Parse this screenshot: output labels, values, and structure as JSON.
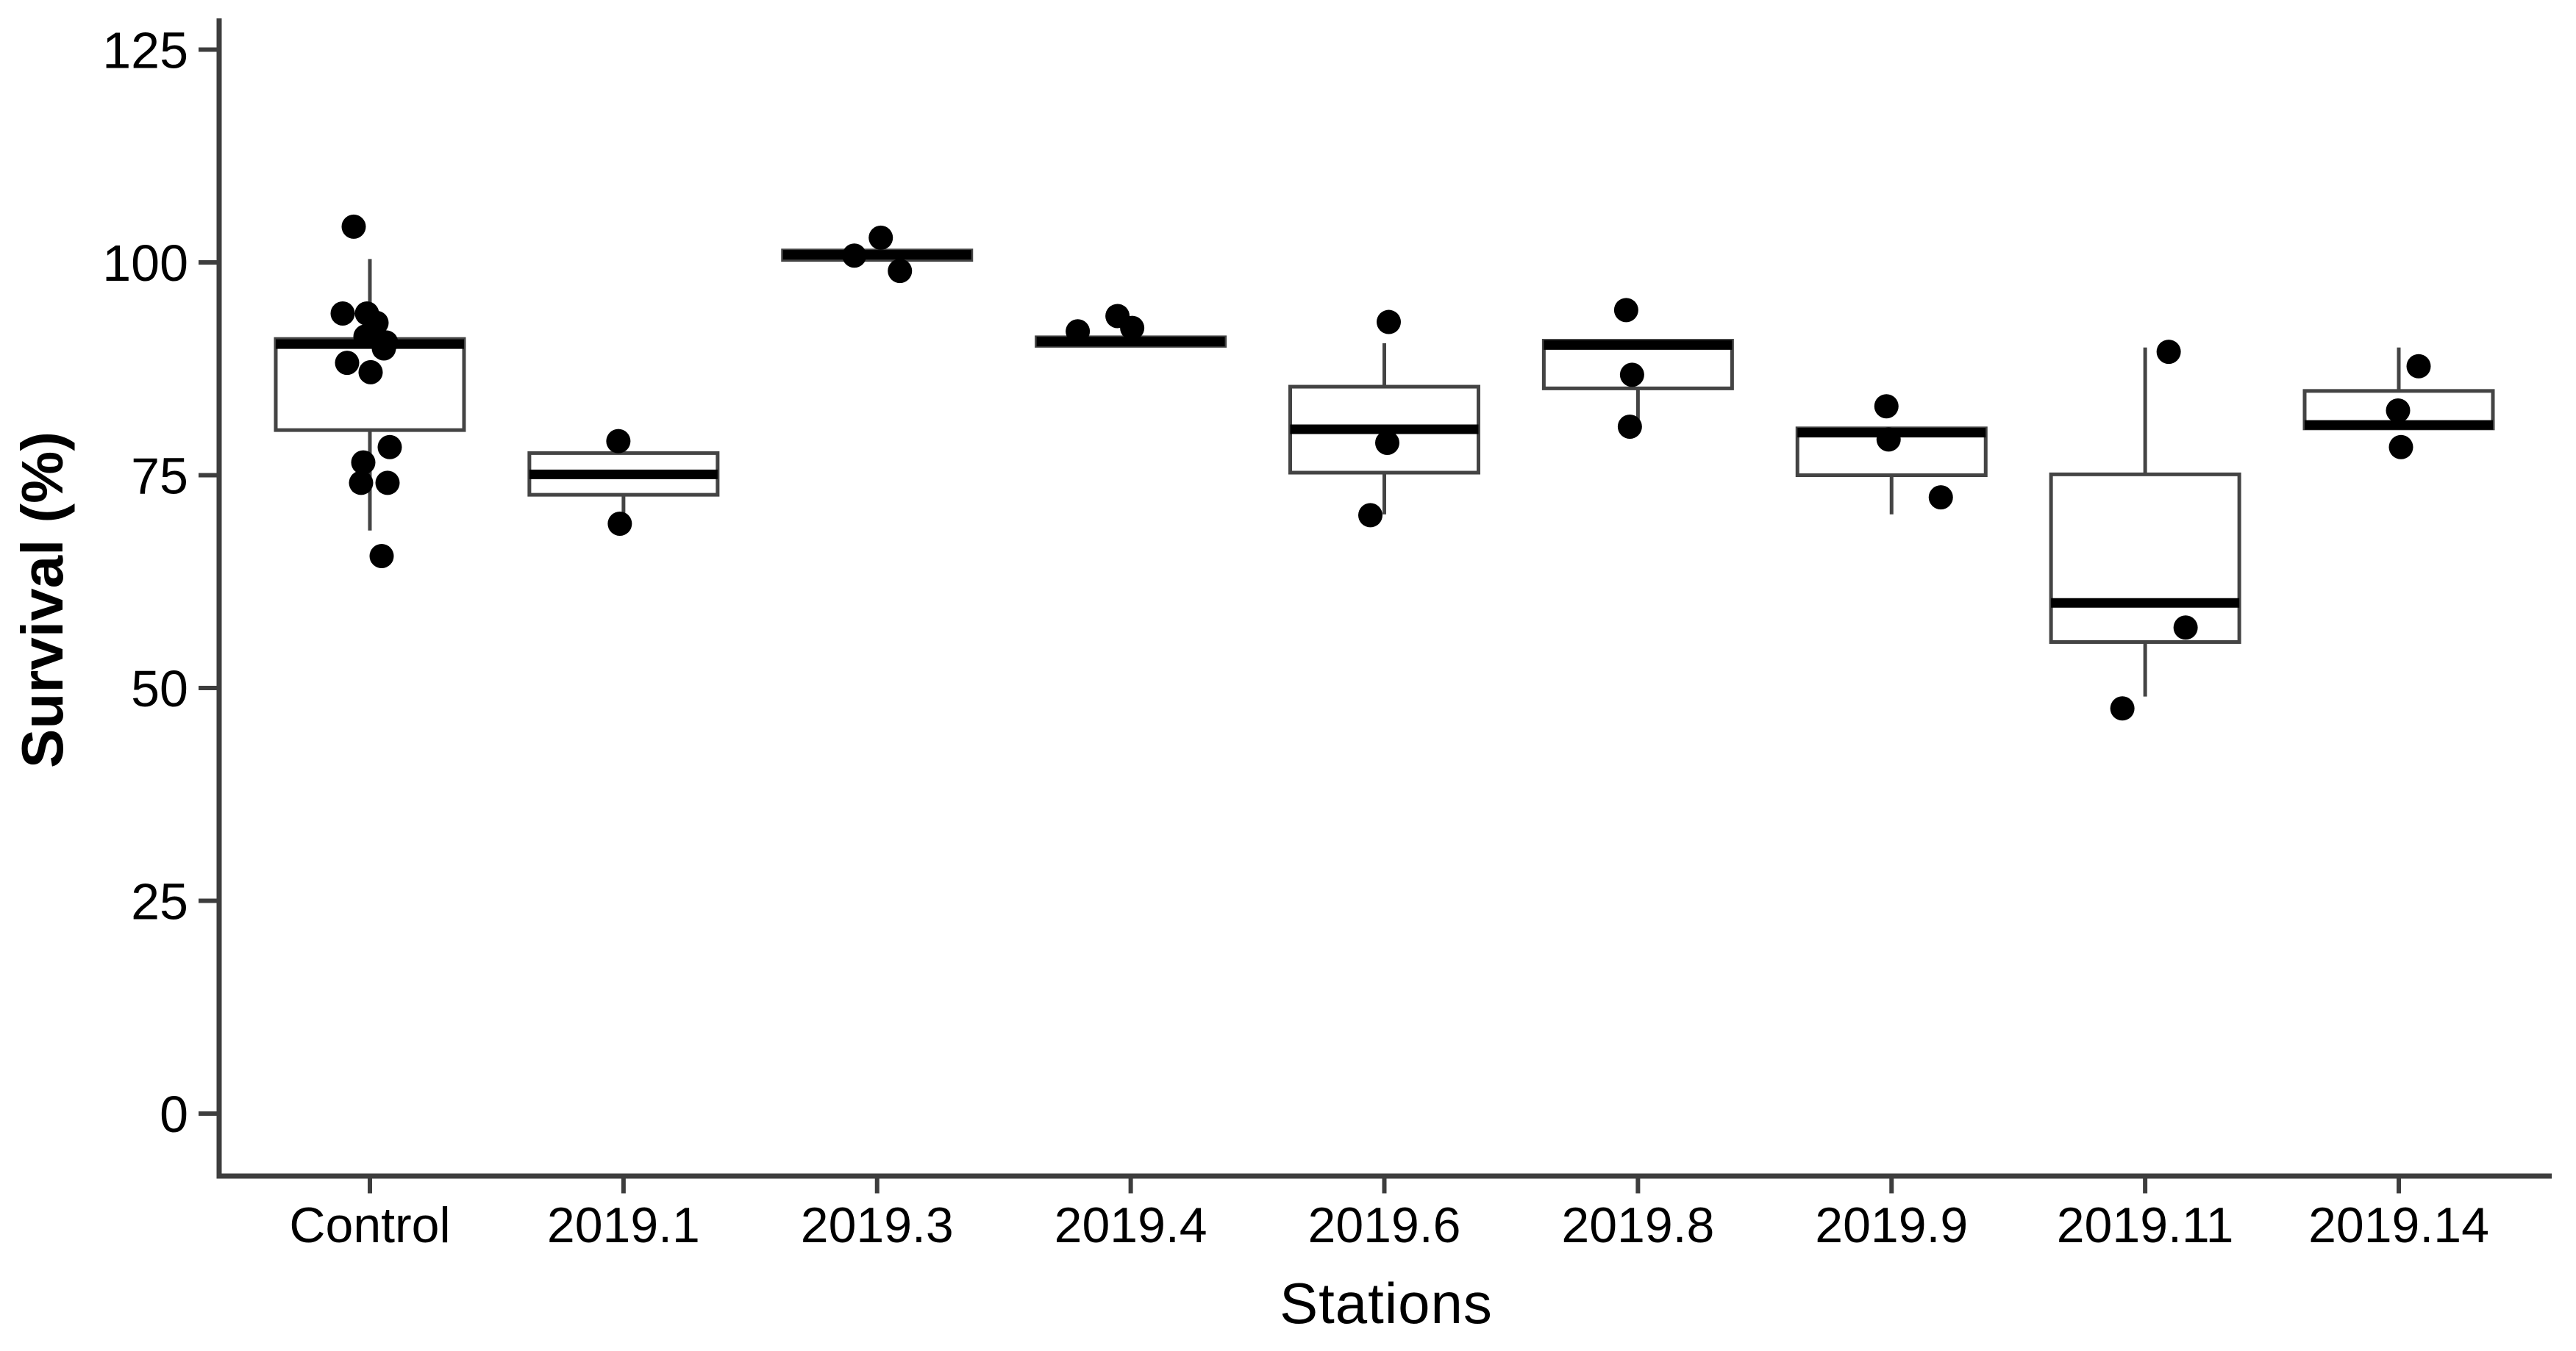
{
  "figure": {
    "background": "#ffffff",
    "ink_color": "#000000",
    "box_stroke_color": "#444444",
    "axis_color": "#3d3d3d"
  },
  "chart_data": {
    "type": "bar",
    "subtype": "boxplot-with-jitter-points",
    "title": "",
    "xlabel": "Stations",
    "ylabel": "Survival (%)",
    "ylim": [
      0,
      125
    ],
    "yticks": [
      0,
      25,
      50,
      75,
      100,
      125
    ],
    "grid": "off",
    "legend": "none",
    "categories": [
      "Control",
      "2019.1",
      "2019.3",
      "2019.4",
      "2019.6",
      "2019.8",
      "2019.9",
      "2019.11",
      "2019.14"
    ],
    "series": [
      {
        "label": "Control",
        "q1": 80.3,
        "median": 90.4,
        "q3": 91.0,
        "whisker_low": 68.5,
        "whisker_high": 100.4,
        "points": [
          {
            "v": 104.2,
            "dx": -22
          },
          {
            "v": 94.0,
            "dx": -37
          },
          {
            "v": 94.0,
            "dx": -4
          },
          {
            "v": 92.9,
            "dx": 9
          },
          {
            "v": 91.3,
            "dx": -6
          },
          {
            "v": 90.6,
            "dx": 22
          },
          {
            "v": 89.9,
            "dx": 19
          },
          {
            "v": 88.2,
            "dx": -31
          },
          {
            "v": 87.1,
            "dx": 1
          },
          {
            "v": 78.3,
            "dx": 27
          },
          {
            "v": 76.5,
            "dx": -9
          },
          {
            "v": 74.1,
            "dx": -12
          },
          {
            "v": 74.1,
            "dx": 24
          },
          {
            "v": 65.5,
            "dx": 16
          }
        ]
      },
      {
        "label": "2019.1",
        "q1": 72.7,
        "median": 75.1,
        "q3": 77.6,
        "whisker_low": 69.3,
        "whisker_high": 77.6,
        "points": [
          {
            "v": 79.0,
            "dx": -7
          },
          {
            "v": 69.3,
            "dx": -5
          }
        ]
      },
      {
        "label": "2019.3",
        "q1": 100.3,
        "median": 100.9,
        "q3": 101.4,
        "whisker_low": 100.3,
        "whisker_high": 101.4,
        "points": [
          {
            "v": 102.9,
            "dx": 5
          },
          {
            "v": 100.8,
            "dx": -31
          },
          {
            "v": 99.0,
            "dx": 31
          }
        ]
      },
      {
        "label": "2019.4",
        "q1": 90.2,
        "median": 90.7,
        "q3": 91.2,
        "whisker_low": 90.2,
        "whisker_high": 91.2,
        "points": [
          {
            "v": 93.7,
            "dx": -18
          },
          {
            "v": 92.3,
            "dx": 2
          },
          {
            "v": 91.9,
            "dx": -72
          }
        ]
      },
      {
        "label": "2019.6",
        "q1": 75.3,
        "median": 80.4,
        "q3": 85.4,
        "whisker_low": 70.4,
        "whisker_high": 90.5,
        "points": [
          {
            "v": 93.0,
            "dx": 6
          },
          {
            "v": 78.8,
            "dx": 4
          },
          {
            "v": 70.3,
            "dx": -19
          }
        ]
      },
      {
        "label": "2019.8",
        "q1": 85.2,
        "median": 90.3,
        "q3": 90.8,
        "whisker_low": 81.1,
        "whisker_high": 90.8,
        "points": [
          {
            "v": 94.4,
            "dx": -16
          },
          {
            "v": 86.8,
            "dx": -8
          },
          {
            "v": 80.7,
            "dx": -11
          }
        ]
      },
      {
        "label": "2019.9",
        "q1": 75.0,
        "median": 80.0,
        "q3": 80.5,
        "whisker_low": 70.4,
        "whisker_high": 80.5,
        "points": [
          {
            "v": 83.1,
            "dx": -7
          },
          {
            "v": 79.2,
            "dx": -4
          },
          {
            "v": 72.4,
            "dx": 67
          }
        ]
      },
      {
        "label": "2019.11",
        "q1": 55.4,
        "median": 60.0,
        "q3": 75.1,
        "whisker_low": 49.0,
        "whisker_high": 90.0,
        "points": [
          {
            "v": 89.5,
            "dx": 32
          },
          {
            "v": 57.1,
            "dx": 55
          },
          {
            "v": 47.6,
            "dx": -31
          }
        ]
      },
      {
        "label": "2019.14",
        "q1": 80.5,
        "median": 80.9,
        "q3": 84.9,
        "whisker_low": 80.5,
        "whisker_high": 90.0,
        "points": [
          {
            "v": 87.8,
            "dx": 27
          },
          {
            "v": 82.6,
            "dx": -1
          },
          {
            "v": 78.3,
            "dx": 3
          }
        ]
      }
    ]
  }
}
